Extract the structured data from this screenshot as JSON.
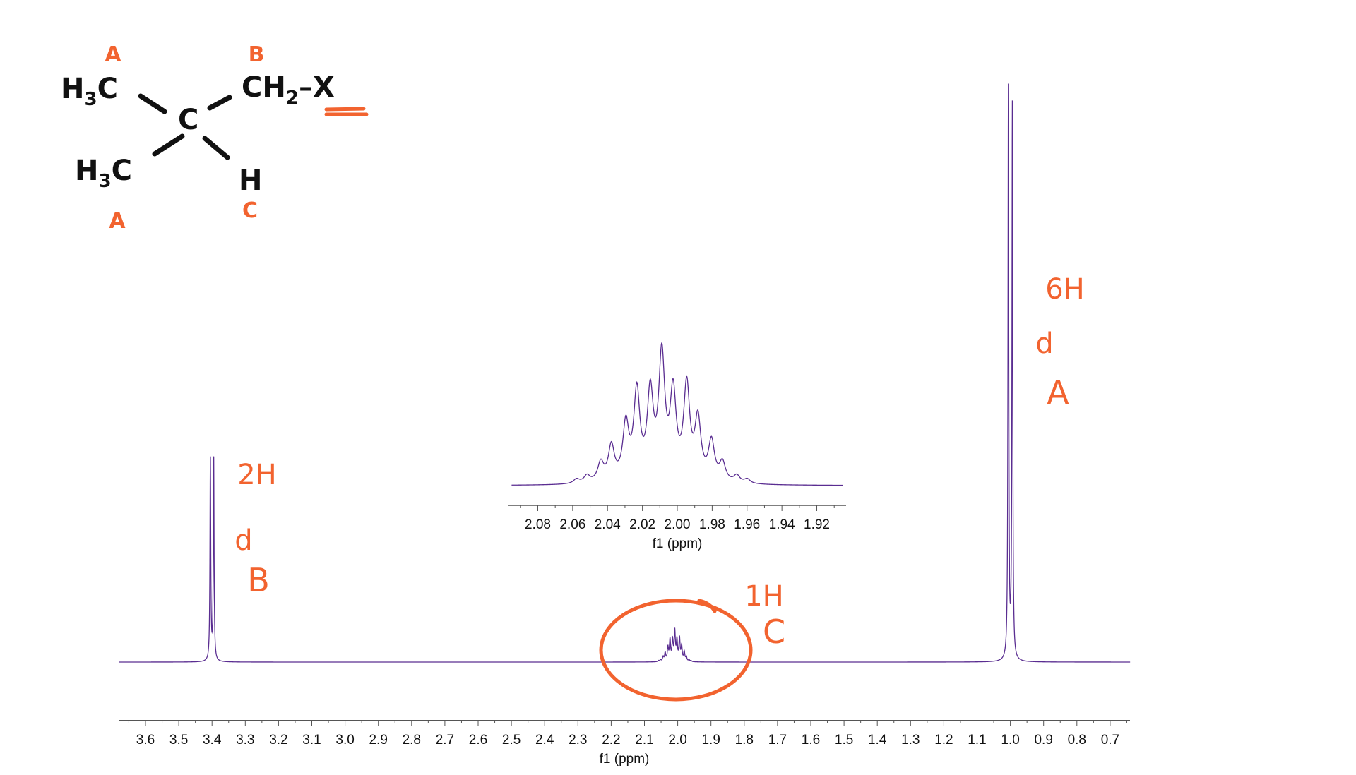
{
  "molecule": {
    "top_left_group": {
      "main": "H",
      "sub": "3",
      "tail": "C"
    },
    "top_right_group": {
      "main": "CH",
      "sub": "2",
      "tail": "–X"
    },
    "center_atom": "C",
    "bottom_left_group": {
      "main": "H",
      "sub": "3",
      "tail": "C"
    },
    "bottom_right_atom": "H",
    "labels": {
      "top_left": "A",
      "top_right": "B",
      "bottom_left": "A",
      "bottom_right": "C"
    }
  },
  "annotations": {
    "peak_b": {
      "integration": "2H",
      "multiplicity": "d",
      "label": "B"
    },
    "peak_c": {
      "integration": "1H",
      "label": "C"
    },
    "peak_a": {
      "integration": "6H",
      "multiplicity": "d",
      "label": "A"
    }
  },
  "colors": {
    "spectrum": "#5a2d91",
    "annotation": "#f2632f",
    "axis": "#555555"
  },
  "chart_data": [
    {
      "type": "line",
      "title": "",
      "xlabel": "f1 (ppm)",
      "ylabel": "",
      "xlim": [
        3.68,
        0.64
      ],
      "x_reversed": true,
      "grid": false,
      "x_ticks": [
        "3.6",
        "3.5",
        "3.4",
        "3.3",
        "3.2",
        "3.1",
        "3.0",
        "2.9",
        "2.8",
        "2.7",
        "2.6",
        "2.5",
        "2.4",
        "2.3",
        "2.2",
        "2.1",
        "2.0",
        "1.9",
        "1.8",
        "1.7",
        "1.6",
        "1.5",
        "1.4",
        "1.3",
        "1.2",
        "1.1",
        "1.0",
        "0.9",
        "0.8",
        "0.7"
      ],
      "peaks": [
        {
          "ppm": 3.405,
          "intensity": 0.36
        },
        {
          "ppm": 3.395,
          "intensity": 0.36
        },
        {
          "ppm": 1.006,
          "intensity": 1.0
        },
        {
          "ppm": 0.994,
          "intensity": 0.97
        }
      ],
      "multiplet_ref": "inset"
    },
    {
      "type": "line",
      "title": "",
      "xlabel": "f1 (ppm)",
      "xlim": [
        2.095,
        1.905
      ],
      "x_reversed": true,
      "x_ticks": [
        "2.08",
        "2.06",
        "2.04",
        "2.02",
        "2.00",
        "1.98",
        "1.96",
        "1.94",
        "1.92"
      ],
      "peaks": [
        {
          "ppm": 2.0578,
          "intensity": 0.03
        },
        {
          "ppm": 2.0518,
          "intensity": 0.05
        },
        {
          "ppm": 2.0439,
          "intensity": 0.13
        },
        {
          "ppm": 2.0378,
          "intensity": 0.24
        },
        {
          "ppm": 2.0295,
          "intensity": 0.38
        },
        {
          "ppm": 2.0232,
          "intensity": 0.6
        },
        {
          "ppm": 2.0155,
          "intensity": 0.58
        },
        {
          "ppm": 2.0089,
          "intensity": 0.84
        },
        {
          "ppm": 2.0024,
          "intensity": 0.58
        },
        {
          "ppm": 1.9946,
          "intensity": 0.64
        },
        {
          "ppm": 1.9882,
          "intensity": 0.41
        },
        {
          "ppm": 1.9804,
          "intensity": 0.27
        },
        {
          "ppm": 1.9741,
          "intensity": 0.13
        },
        {
          "ppm": 1.9659,
          "intensity": 0.05
        },
        {
          "ppm": 1.9599,
          "intensity": 0.03
        }
      ],
      "main_height_fraction": 0.06
    }
  ]
}
